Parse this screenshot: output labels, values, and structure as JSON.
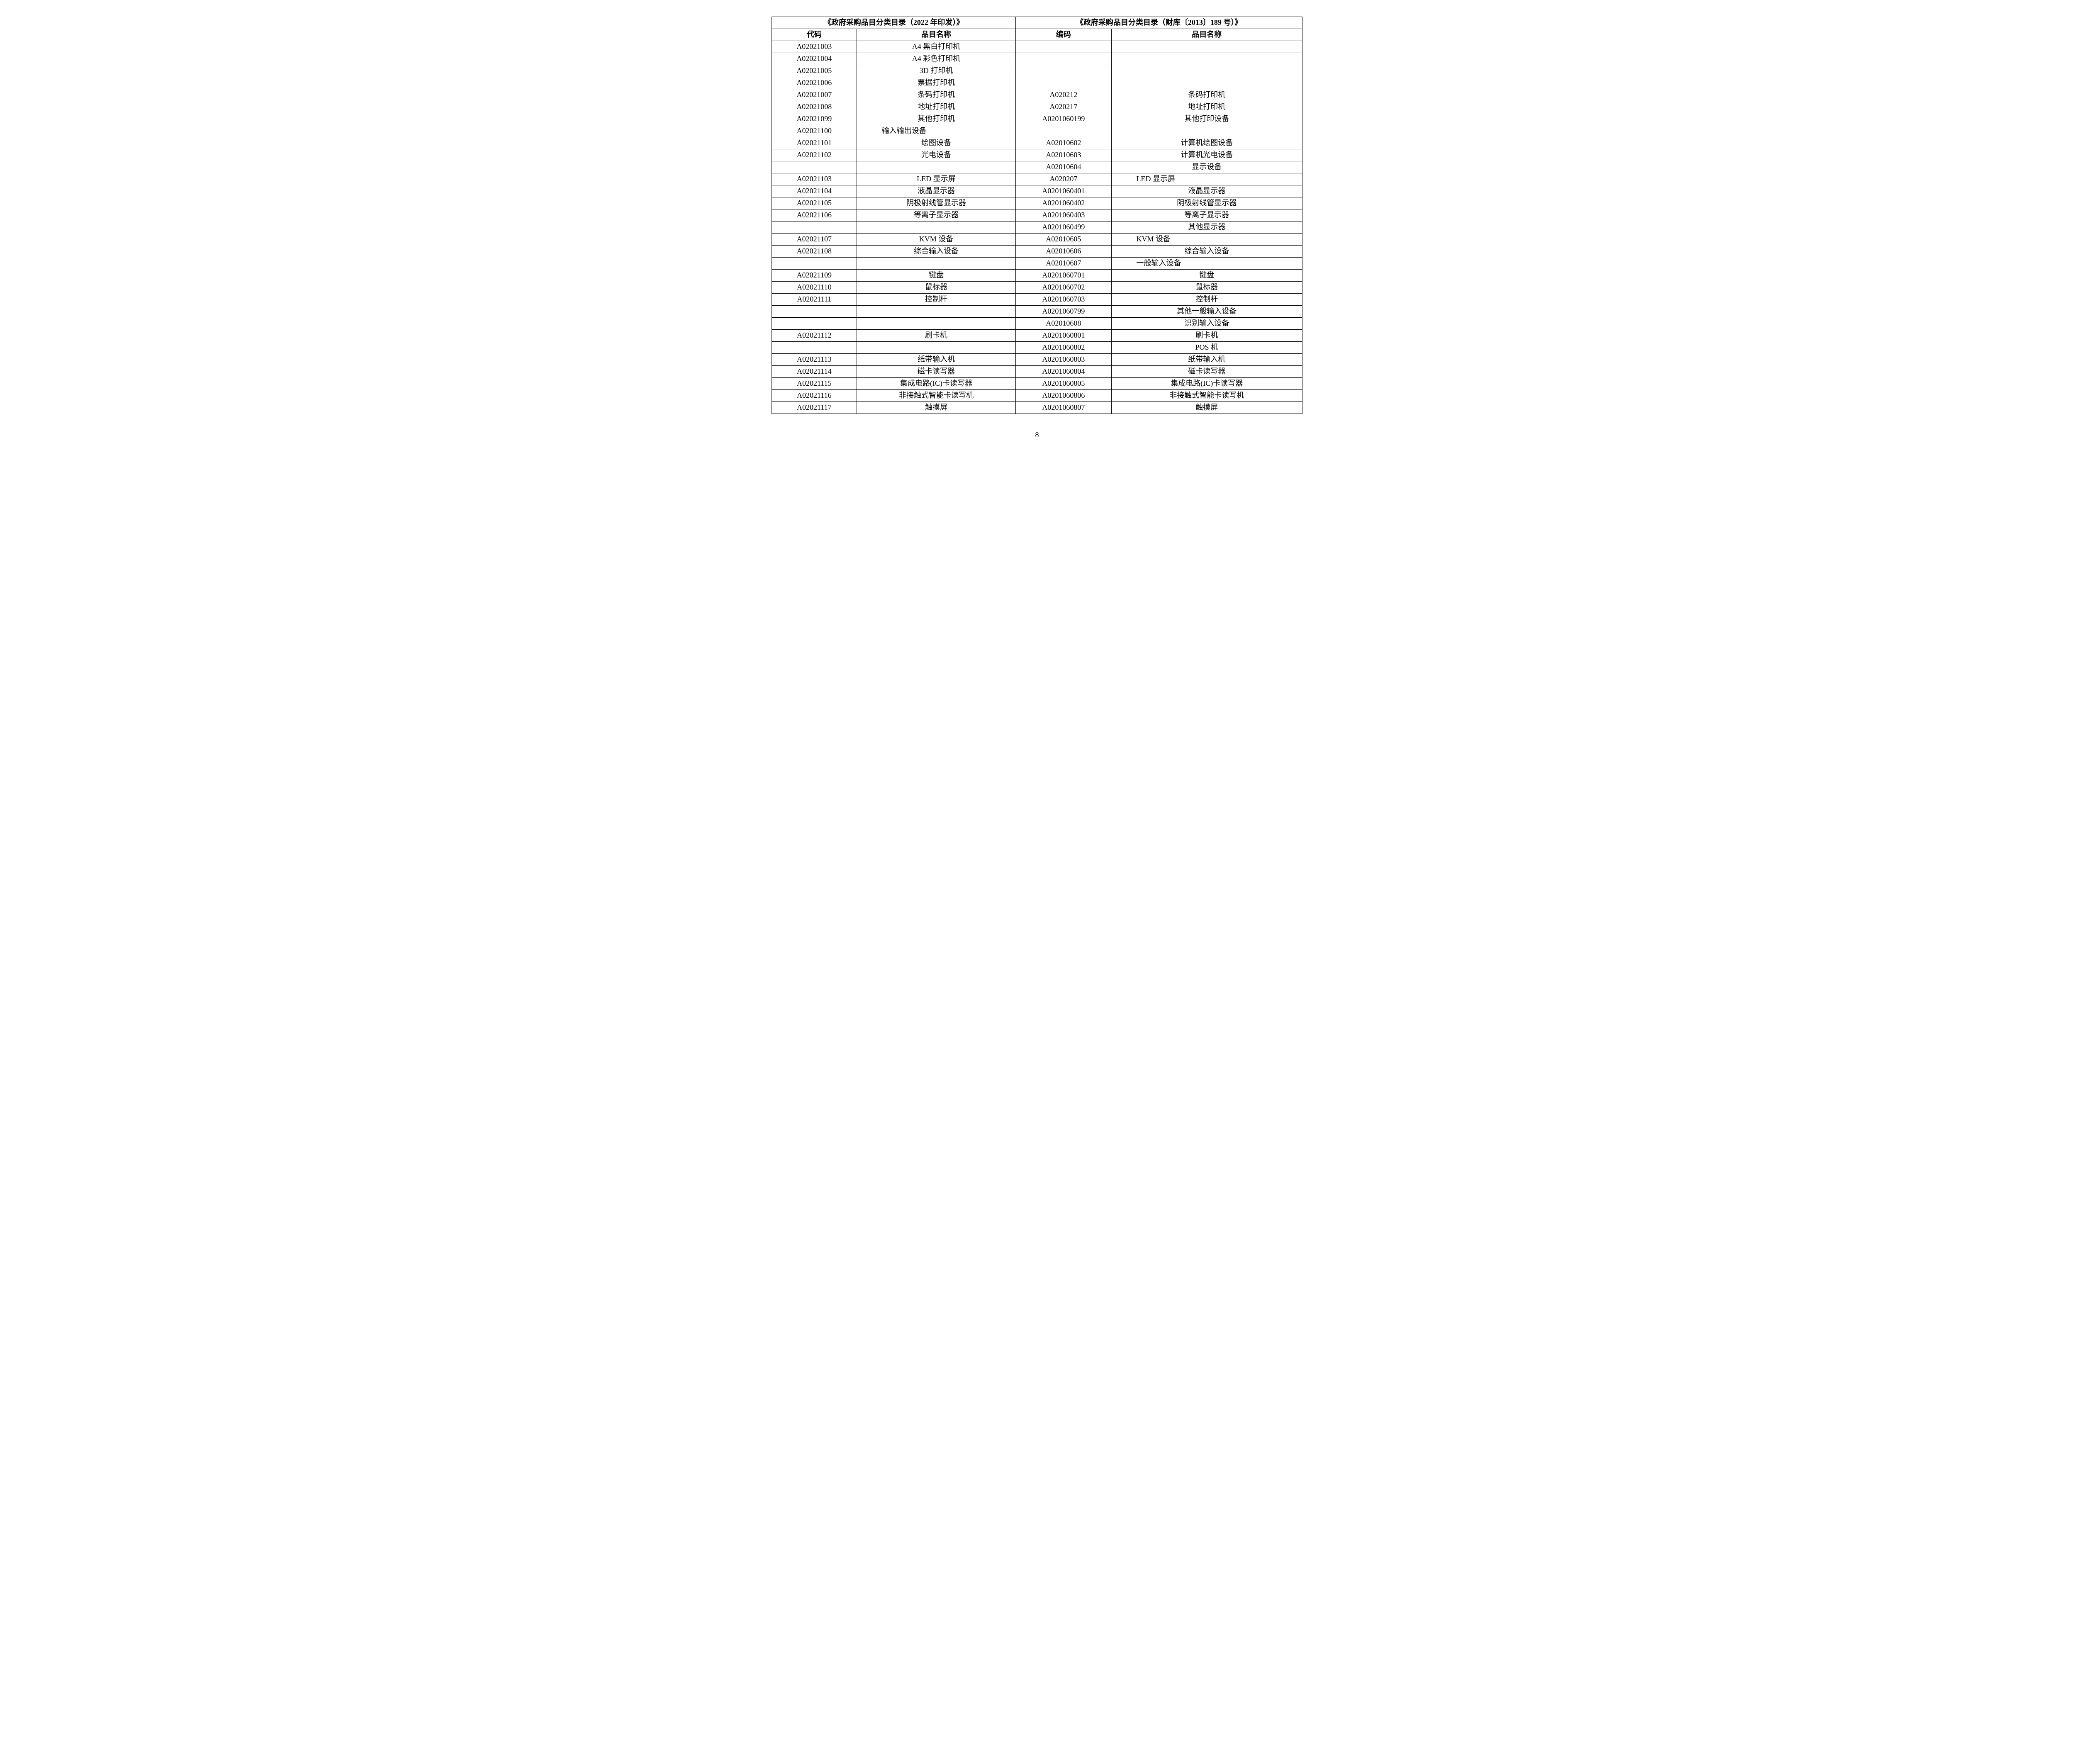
{
  "header": {
    "left_title": "《政府采购品目分类目录（2022 年印发）》",
    "right_title": "《政府采购品目分类目录（财库〔2013〕189 号）》",
    "col_a_code": "代码",
    "col_a_name": "品目名称",
    "col_b_code": "编码",
    "col_b_name": "品目名称"
  },
  "rows": [
    {
      "a_code": "A02021003",
      "a_name": "A4 黑白打印机",
      "b_code": "",
      "b_name": ""
    },
    {
      "a_code": "A02021004",
      "a_name": "A4 彩色打印机",
      "b_code": "",
      "b_name": ""
    },
    {
      "a_code": "A02021005",
      "a_name": "3D 打印机",
      "b_code": "",
      "b_name": ""
    },
    {
      "a_code": "A02021006",
      "a_name": "票据打印机",
      "b_code": "",
      "b_name": ""
    },
    {
      "a_code": "A02021007",
      "a_name": "条码打印机",
      "b_code": "A020212",
      "b_name": "条码打印机"
    },
    {
      "a_code": "A02021008",
      "a_name": "地址打印机",
      "b_code": "A020217",
      "b_name": "地址打印机"
    },
    {
      "a_code": "A02021099",
      "a_name": "其他打印机",
      "b_code": "A0201060199",
      "b_name": "其他打印设备"
    },
    {
      "a_code": "A02021100",
      "a_name": "输入输出设备",
      "b_code": "",
      "b_name": "",
      "a_name_left": true
    },
    {
      "a_code": "A02021101",
      "a_name": "绘图设备",
      "b_code": "A02010602",
      "b_name": "计算机绘图设备"
    },
    {
      "a_code": "A02021102",
      "a_name": "光电设备",
      "b_code": "A02010603",
      "b_name": "计算机光电设备"
    },
    {
      "a_code": "",
      "a_name": "",
      "b_code": "A02010604",
      "b_name": "显示设备"
    },
    {
      "a_code": "A02021103",
      "a_name": "LED 显示屏",
      "b_code": "A020207",
      "b_name": "LED 显示屏",
      "b_name_left": true
    },
    {
      "a_code": "A02021104",
      "a_name": "液晶显示器",
      "b_code": "A0201060401",
      "b_name": "液晶显示器"
    },
    {
      "a_code": "A02021105",
      "a_name": "阴极射线管显示器",
      "b_code": "A0201060402",
      "b_name": "阴极射线管显示器"
    },
    {
      "a_code": "A02021106",
      "a_name": "等离子显示器",
      "b_code": "A0201060403",
      "b_name": "等离子显示器"
    },
    {
      "a_code": "",
      "a_name": "",
      "b_code": "A0201060499",
      "b_name": "其他显示器"
    },
    {
      "a_code": "A02021107",
      "a_name": "KVM 设备",
      "b_code": "A02010605",
      "b_name": "KVM 设备",
      "b_name_left": true
    },
    {
      "a_code": "A02021108",
      "a_name": "综合输入设备",
      "b_code": "A02010606",
      "b_name": "综合输入设备"
    },
    {
      "a_code": "",
      "a_name": "",
      "b_code": "A02010607",
      "b_name": "一般输入设备",
      "b_name_left": true
    },
    {
      "a_code": "A02021109",
      "a_name": "键盘",
      "b_code": "A0201060701",
      "b_name": "键盘"
    },
    {
      "a_code": "A02021110",
      "a_name": "鼠标器",
      "b_code": "A0201060702",
      "b_name": "鼠标器"
    },
    {
      "a_code": "A02021111",
      "a_name": "控制杆",
      "b_code": "A0201060703",
      "b_name": "控制杆"
    },
    {
      "a_code": "",
      "a_name": "",
      "b_code": "A0201060799",
      "b_name": "其他一般输入设备"
    },
    {
      "a_code": "",
      "a_name": "",
      "b_code": "A02010608",
      "b_name": "识别输入设备"
    },
    {
      "a_code": "A02021112",
      "a_name": "刷卡机",
      "b_code": "A0201060801",
      "b_name": "刷卡机"
    },
    {
      "a_code": "",
      "a_name": "",
      "b_code": "A0201060802",
      "b_name": "POS 机"
    },
    {
      "a_code": "A02021113",
      "a_name": "纸带输入机",
      "b_code": "A0201060803",
      "b_name": "纸带输入机"
    },
    {
      "a_code": "A02021114",
      "a_name": "磁卡读写器",
      "b_code": "A0201060804",
      "b_name": "磁卡读写器"
    },
    {
      "a_code": "A02021115",
      "a_name": "集成电路(IC)卡读写器",
      "b_code": "A0201060805",
      "b_name": "集成电路(IC)卡读写器"
    },
    {
      "a_code": "A02021116",
      "a_name": "非接触式智能卡读写机",
      "b_code": "A0201060806",
      "b_name": "非接触式智能卡读写机"
    },
    {
      "a_code": "A02021117",
      "a_name": "触摸屏",
      "b_code": "A0201060807",
      "b_name": "触摸屏"
    }
  ],
  "page_number": "8",
  "style": {
    "font_family": "SimSun",
    "font_size_pt": 14,
    "border_color": "#000000",
    "background_color": "#ffffff",
    "header_bold": true
  }
}
